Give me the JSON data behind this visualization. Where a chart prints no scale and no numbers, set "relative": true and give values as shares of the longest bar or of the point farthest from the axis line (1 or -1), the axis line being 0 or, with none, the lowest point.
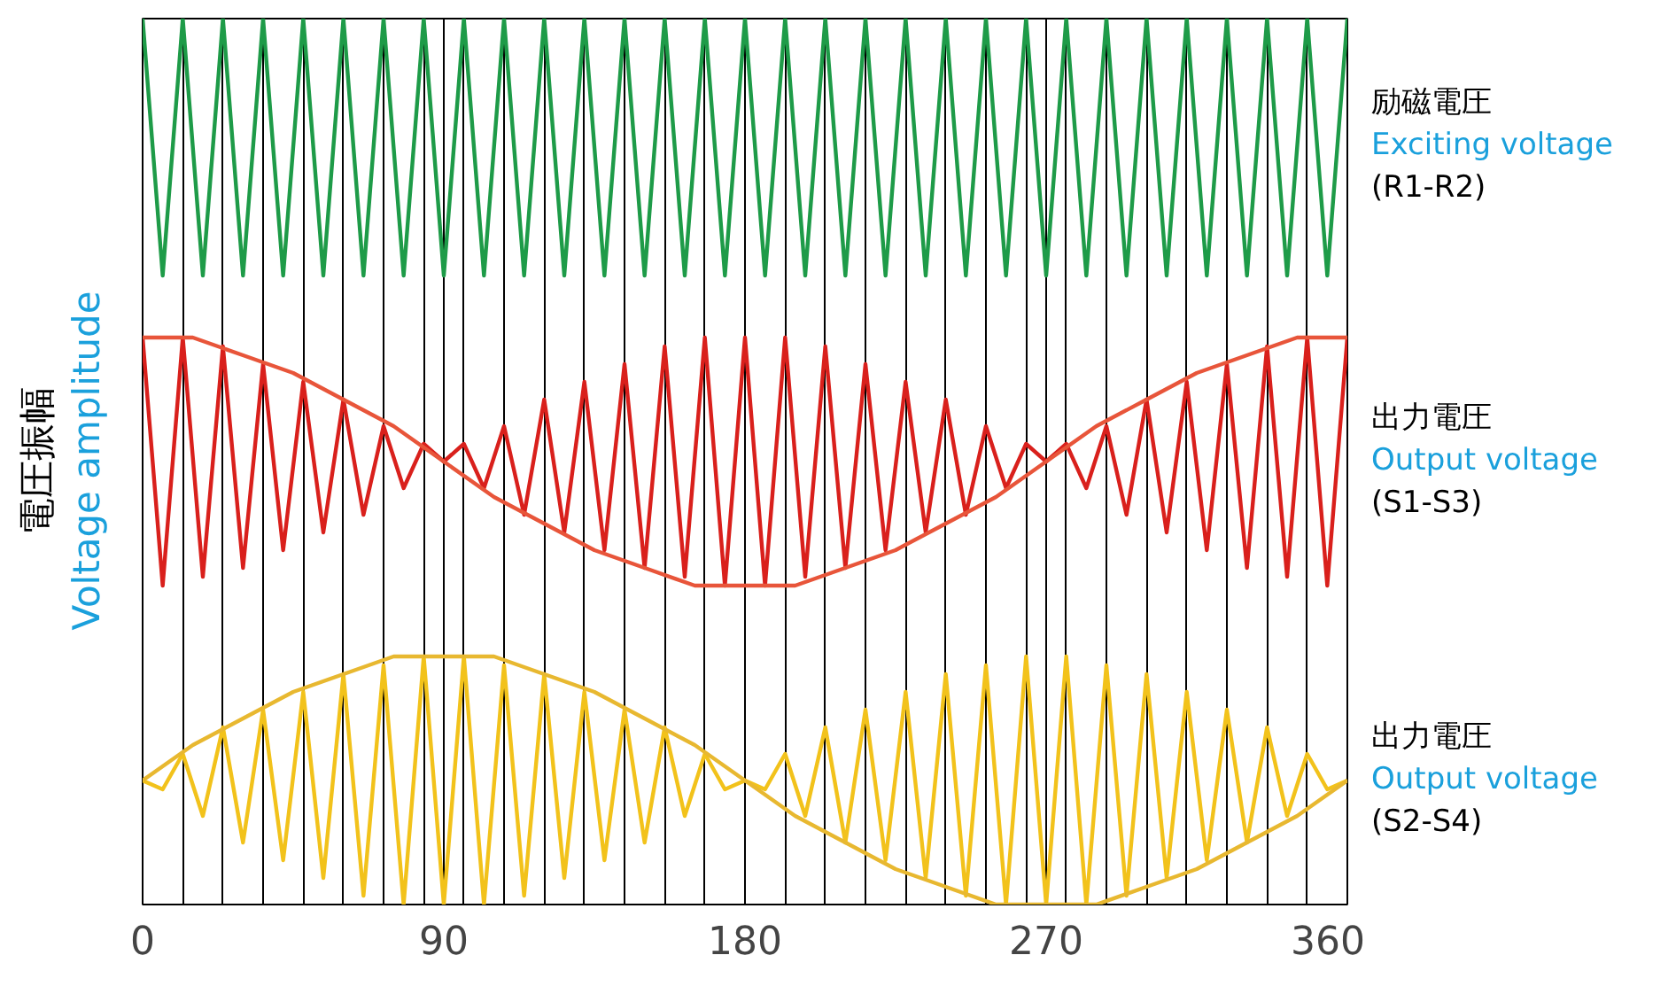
{
  "chart_data": {
    "type": "line",
    "relative": true,
    "ylabel": "電圧振幅\nVoltage amplitude",
    "x": [
      0,
      6,
      12,
      18,
      24,
      30,
      36,
      42,
      48,
      54,
      60,
      66,
      72,
      78,
      84,
      90,
      96,
      102,
      108,
      114,
      120,
      126,
      132,
      138,
      144,
      150,
      156,
      162,
      168,
      174,
      180,
      186,
      192,
      198,
      204,
      210,
      216,
      222,
      228,
      234,
      240,
      246,
      252,
      258,
      264,
      270,
      276,
      282,
      288,
      294,
      300,
      306,
      312,
      318,
      324,
      330,
      336,
      342,
      348,
      354,
      360
    ],
    "xlim": [
      0,
      360
    ],
    "xticks": [
      0,
      {
        "value": 12,
        "label": null
      },
      {
        "value": 24,
        "label": null
      },
      {
        "value": 36,
        "label": null
      },
      {
        "value": 48,
        "label": null
      },
      {
        "value": 60,
        "label": null
      },
      {
        "value": 72,
        "label": null
      },
      {
        "value": 84,
        "label": null
      },
      90,
      {
        "value": 96,
        "label": null
      },
      {
        "value": 108,
        "label": null
      },
      {
        "value": 120,
        "label": null
      },
      {
        "value": 132,
        "label": null
      },
      {
        "value": 144,
        "label": null
      },
      {
        "value": 156,
        "label": null
      },
      {
        "value": 168,
        "label": null
      },
      180,
      {
        "value": 192,
        "label": null
      },
      {
        "value": 204,
        "label": null
      },
      {
        "value": 216,
        "label": null
      },
      {
        "value": 228,
        "label": null
      },
      {
        "value": 240,
        "label": null
      },
      {
        "value": 252,
        "label": null
      },
      {
        "value": 264,
        "label": null
      },
      270,
      {
        "value": 276,
        "label": null
      },
      {
        "value": 288,
        "label": null
      },
      {
        "value": 300,
        "label": null
      },
      {
        "value": 312,
        "label": null
      },
      {
        "value": 324,
        "label": null
      },
      {
        "value": 336,
        "label": null
      },
      {
        "value": 348,
        "label": null
      },
      360
    ],
    "grid": "x",
    "series": [
      {
        "name": "励磁電圧\nExciting voltage\n(R1-R2)",
        "color": "#1e9b48",
        "values": [
          1.0,
          0.71,
          1.0,
          0.71,
          1.0,
          0.71,
          1.0,
          0.71,
          1.0,
          0.71,
          1.0,
          0.71,
          1.0,
          0.71,
          1.0,
          0.71,
          1.0,
          0.71,
          1.0,
          0.71,
          1.0,
          0.71,
          1.0,
          0.71,
          1.0,
          0.71,
          1.0,
          0.71,
          1.0,
          0.71,
          1.0,
          0.71,
          1.0,
          0.71,
          1.0,
          0.71,
          1.0,
          0.71,
          1.0,
          0.71,
          1.0,
          0.71,
          1.0,
          0.71,
          1.0,
          0.71,
          1.0,
          0.71,
          1.0,
          0.71,
          1.0,
          0.71,
          1.0,
          0.71,
          1.0,
          0.71,
          1.0,
          0.71,
          1.0,
          0.71,
          1.0
        ]
      },
      {
        "name": "出力電圧\nOutput voltage\n(S1-S3)",
        "color": "#d9201c",
        "values": [
          0.64,
          0.36,
          0.64,
          0.37,
          0.63,
          0.38,
          0.61,
          0.4,
          0.59,
          0.42,
          0.57,
          0.44,
          0.54,
          0.47,
          0.52,
          0.5,
          0.52,
          0.47,
          0.54,
          0.44,
          0.57,
          0.42,
          0.59,
          0.4,
          0.61,
          0.38,
          0.63,
          0.37,
          0.64,
          0.36,
          0.64,
          0.36,
          0.64,
          0.37,
          0.63,
          0.38,
          0.61,
          0.4,
          0.59,
          0.42,
          0.57,
          0.44,
          0.54,
          0.47,
          0.52,
          0.5,
          0.52,
          0.47,
          0.54,
          0.44,
          0.57,
          0.42,
          0.59,
          0.4,
          0.61,
          0.38,
          0.63,
          0.37,
          0.64,
          0.36,
          0.64
        ]
      },
      {
        "color": "#e8553a",
        "x": [
          0,
          15,
          30,
          45,
          60,
          75,
          90,
          105,
          120,
          135,
          150,
          165,
          180,
          195,
          210,
          225,
          240,
          255,
          270,
          285,
          300,
          315,
          330,
          345,
          360
        ],
        "values": [
          0.64,
          0.64,
          0.62,
          0.6,
          0.57,
          0.54,
          0.5,
          0.46,
          0.43,
          0.4,
          0.38,
          0.36,
          0.36,
          0.36,
          0.38,
          0.4,
          0.43,
          0.46,
          0.5,
          0.54,
          0.57,
          0.6,
          0.62,
          0.64,
          0.64
        ]
      },
      {
        "name": "出力電圧\nOutput voltage\n(S2-S4)",
        "color": "#f2c21b",
        "values": [
          0.14,
          0.13,
          0.17,
          0.1,
          0.2,
          0.07,
          0.22,
          0.05,
          0.24,
          0.03,
          0.26,
          0.01,
          0.27,
          0.0,
          0.28,
          0.0,
          0.28,
          0.0,
          0.27,
          0.01,
          0.26,
          0.03,
          0.24,
          0.05,
          0.22,
          0.07,
          0.2,
          0.1,
          0.17,
          0.13,
          0.14,
          0.13,
          0.17,
          0.1,
          0.2,
          0.07,
          0.22,
          0.05,
          0.24,
          0.03,
          0.26,
          0.01,
          0.27,
          0.0,
          0.28,
          0.0,
          0.28,
          0.0,
          0.27,
          0.01,
          0.26,
          0.03,
          0.24,
          0.05,
          0.22,
          0.07,
          0.2,
          0.1,
          0.17,
          0.13,
          0.14
        ]
      },
      {
        "color": "#e8b830",
        "x": [
          0,
          15,
          30,
          45,
          60,
          75,
          90,
          105,
          120,
          135,
          150,
          165,
          180,
          195,
          210,
          225,
          240,
          255,
          270,
          285,
          300,
          315,
          330,
          345,
          360
        ],
        "values": [
          0.14,
          0.18,
          0.21,
          0.24,
          0.26,
          0.28,
          0.28,
          0.28,
          0.26,
          0.24,
          0.21,
          0.18,
          0.14,
          0.1,
          0.07,
          0.04,
          0.02,
          0.0,
          0.0,
          0.0,
          0.02,
          0.04,
          0.07,
          0.1,
          0.14
        ]
      }
    ]
  }
}
